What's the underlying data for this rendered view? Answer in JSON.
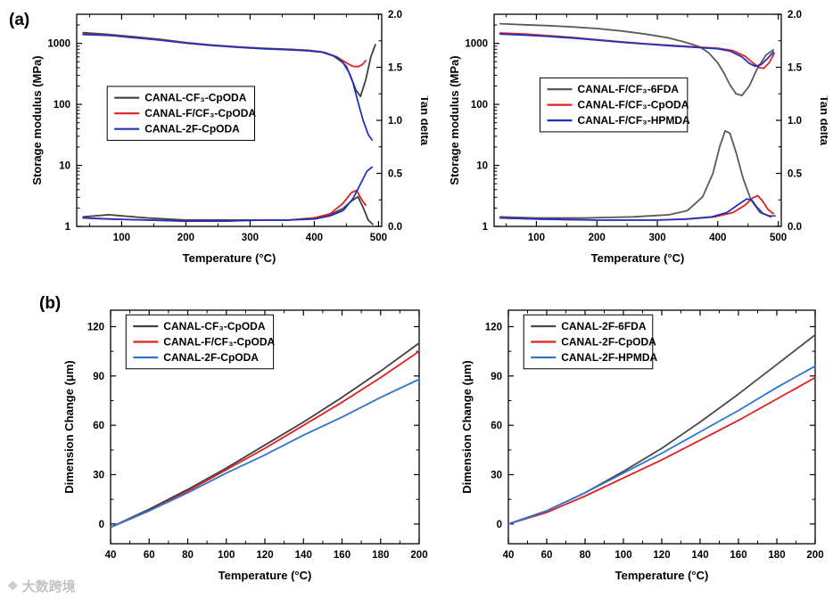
{
  "panel_labels": {
    "a": "(a)",
    "b": "(b)"
  },
  "watermark": {
    "icon": "❖",
    "text": "大数跨境"
  },
  "chart_data": [
    {
      "id": "dma-left",
      "type": "line",
      "xlabel": "Temperature (°C)",
      "ylabel_left": "Storage modulus (MPa)",
      "ylabel_right": "Tan delta",
      "xlim": [
        30,
        505
      ],
      "xticks": [
        100,
        200,
        300,
        400,
        500
      ],
      "xminor": 50,
      "yleft": {
        "scale": "log",
        "lim": [
          1,
          3000
        ],
        "ticks": [
          1,
          10,
          100,
          1000
        ],
        "dec": 0
      },
      "yright": {
        "scale": "linear",
        "lim": [
          0,
          2
        ],
        "ticks": [
          0,
          0.5,
          1,
          1.5,
          2
        ],
        "dec": 1,
        "minor": 0.25
      },
      "legend": {
        "x": 0.1,
        "y": 0.34
      },
      "margin_left": 56,
      "series": [
        {
          "name": "CANAL-CF₃-CpODA",
          "color": "#3f3f3f",
          "axis": "left",
          "in_legend": true,
          "x": [
            40,
            80,
            120,
            160,
            200,
            240,
            280,
            320,
            360,
            390,
            410,
            430,
            445,
            455,
            465,
            472,
            480,
            488,
            495
          ],
          "y": [
            1500,
            1400,
            1280,
            1160,
            1030,
            940,
            880,
            830,
            800,
            770,
            730,
            620,
            480,
            320,
            170,
            135,
            250,
            600,
            950
          ]
        },
        {
          "name": "CANAL-F/CF₃-CpODA",
          "color": "#e02020",
          "axis": "left",
          "in_legend": true,
          "x": [
            40,
            80,
            120,
            160,
            200,
            240,
            280,
            320,
            360,
            390,
            415,
            435,
            450,
            460,
            468,
            475,
            480
          ],
          "y": [
            1430,
            1370,
            1260,
            1140,
            1020,
            930,
            870,
            820,
            790,
            760,
            710,
            600,
            480,
            420,
            415,
            450,
            520
          ]
        },
        {
          "name": "CANAL-2F-CpODA",
          "color": "#2033bb",
          "axis": "left",
          "in_legend": true,
          "x": [
            40,
            80,
            120,
            160,
            200,
            240,
            280,
            320,
            360,
            390,
            415,
            435,
            450,
            460,
            468,
            476,
            484,
            490
          ],
          "y": [
            1400,
            1350,
            1240,
            1130,
            1010,
            925,
            865,
            815,
            785,
            755,
            715,
            600,
            420,
            230,
            110,
            55,
            32,
            26
          ]
        },
        {
          "name": "CANAL-CF₃-CpODA",
          "color": "#3f3f3f",
          "axis": "right",
          "in_legend": false,
          "x": [
            40,
            60,
            80,
            100,
            140,
            200,
            260,
            320,
            360,
            400,
            425,
            445,
            458,
            468,
            476,
            484,
            491
          ],
          "y": [
            0.09,
            0.1,
            0.11,
            0.1,
            0.08,
            0.06,
            0.06,
            0.06,
            0.06,
            0.08,
            0.11,
            0.17,
            0.24,
            0.28,
            0.18,
            0.06,
            0.02
          ]
        },
        {
          "name": "CANAL-F/CF₃-CpODA",
          "color": "#e02020",
          "axis": "right",
          "in_legend": false,
          "x": [
            40,
            80,
            140,
            200,
            260,
            320,
            360,
            400,
            425,
            445,
            458,
            466,
            473,
            480
          ],
          "y": [
            0.08,
            0.07,
            0.06,
            0.05,
            0.05,
            0.06,
            0.06,
            0.08,
            0.12,
            0.22,
            0.32,
            0.34,
            0.26,
            0.2
          ]
        },
        {
          "name": "CANAL-2F-CpODA",
          "color": "#2033bb",
          "axis": "right",
          "in_legend": false,
          "x": [
            40,
            80,
            140,
            200,
            260,
            320,
            360,
            400,
            425,
            445,
            460,
            472,
            482,
            490
          ],
          "y": [
            0.08,
            0.07,
            0.06,
            0.05,
            0.05,
            0.06,
            0.06,
            0.07,
            0.1,
            0.15,
            0.26,
            0.4,
            0.52,
            0.56
          ]
        }
      ]
    },
    {
      "id": "dma-right",
      "type": "line",
      "xlabel": "Temperature (°C)",
      "ylabel_left": "Storage modulus (MPa)",
      "ylabel_right": "Tan delta",
      "xlim": [
        30,
        505
      ],
      "xticks": [
        100,
        200,
        300,
        400,
        500
      ],
      "xminor": 50,
      "yleft": {
        "scale": "log",
        "lim": [
          1,
          3000
        ],
        "ticks": [
          1,
          10,
          100,
          1000
        ],
        "dec": 0
      },
      "yright": {
        "scale": "linear",
        "lim": [
          0,
          2
        ],
        "ticks": [
          0,
          0.5,
          1,
          1.5,
          2
        ],
        "dec": 1,
        "minor": 0.25
      },
      "legend": {
        "x": 0.16,
        "y": 0.3
      },
      "margin_left": 56,
      "series": [
        {
          "name": "CANAL-F/CF₃-6FDA",
          "color": "#5a5a5a",
          "axis": "left",
          "in_legend": true,
          "x": [
            40,
            80,
            120,
            160,
            200,
            240,
            280,
            320,
            350,
            370,
            385,
            400,
            410,
            420,
            430,
            440,
            452,
            465,
            480,
            492
          ],
          "y": [
            2100,
            2020,
            1950,
            1860,
            1750,
            1600,
            1420,
            1220,
            1020,
            880,
            700,
            480,
            330,
            210,
            150,
            140,
            200,
            380,
            650,
            780
          ]
        },
        {
          "name": "CANAL-F/CF₃-CpODA",
          "color": "#e02020",
          "axis": "left",
          "in_legend": true,
          "x": [
            40,
            80,
            120,
            160,
            200,
            240,
            280,
            320,
            360,
            400,
            425,
            445,
            458,
            468,
            476,
            485,
            493
          ],
          "y": [
            1480,
            1420,
            1340,
            1250,
            1150,
            1060,
            990,
            930,
            880,
            830,
            760,
            620,
            480,
            400,
            390,
            480,
            680
          ]
        },
        {
          "name": "CANAL-F/CF₃-HPMDA",
          "color": "#2033bb",
          "axis": "left",
          "in_legend": true,
          "x": [
            40,
            80,
            120,
            160,
            200,
            240,
            280,
            320,
            360,
            400,
            420,
            440,
            452,
            462,
            472,
            482,
            492
          ],
          "y": [
            1420,
            1370,
            1300,
            1220,
            1130,
            1045,
            975,
            915,
            865,
            815,
            750,
            600,
            470,
            420,
            450,
            560,
            720
          ]
        },
        {
          "name": "CANAL-F/CF₃-6FDA",
          "color": "#5a5a5a",
          "axis": "right",
          "in_legend": false,
          "x": [
            40,
            100,
            180,
            260,
            320,
            350,
            375,
            392,
            403,
            412,
            420,
            430,
            442,
            455,
            470,
            485,
            495
          ],
          "y": [
            0.09,
            0.08,
            0.08,
            0.09,
            0.11,
            0.15,
            0.28,
            0.5,
            0.75,
            0.9,
            0.88,
            0.7,
            0.45,
            0.25,
            0.13,
            0.1,
            0.1
          ]
        },
        {
          "name": "CANAL-F/CF₃-CpODA",
          "color": "#e02020",
          "axis": "right",
          "in_legend": false,
          "x": [
            40,
            100,
            200,
            300,
            350,
            395,
            425,
            445,
            458,
            466,
            474,
            483,
            492
          ],
          "y": [
            0.08,
            0.07,
            0.06,
            0.06,
            0.07,
            0.09,
            0.13,
            0.2,
            0.27,
            0.29,
            0.24,
            0.16,
            0.12
          ]
        },
        {
          "name": "CANAL-F/CF₃-HPMDA",
          "color": "#2033bb",
          "axis": "right",
          "in_legend": false,
          "x": [
            40,
            100,
            200,
            300,
            350,
            390,
            415,
            435,
            448,
            456,
            465,
            475,
            488
          ],
          "y": [
            0.08,
            0.07,
            0.06,
            0.06,
            0.07,
            0.09,
            0.13,
            0.21,
            0.26,
            0.25,
            0.18,
            0.12,
            0.09
          ]
        }
      ]
    },
    {
      "id": "tma-left",
      "type": "line",
      "xlabel": "Temperature (°C)",
      "ylabel_left": "Dimension Change (μm)",
      "xlim": [
        40,
        200
      ],
      "xticks": [
        40,
        60,
        80,
        100,
        120,
        140,
        160,
        180,
        200
      ],
      "xminor": 10,
      "yleft": {
        "scale": "linear",
        "lim": [
          -12,
          130
        ],
        "ticks": [
          0,
          30,
          60,
          90,
          120
        ],
        "dec": 0,
        "minor": 15
      },
      "legend": {
        "x": 0.05,
        "y": 0.02
      },
      "margin_left": 58,
      "series": [
        {
          "name": "CANAL-CF₃-CpODA",
          "color": "#3f3f3f",
          "axis": "left",
          "in_legend": true,
          "x": [
            40,
            60,
            80,
            100,
            120,
            140,
            160,
            180,
            200
          ],
          "y": [
            -2,
            9,
            21,
            34,
            48,
            62,
            77,
            93,
            110
          ]
        },
        {
          "name": "CANAL-F/CF₃-CpODA",
          "color": "#e02020",
          "axis": "left",
          "in_legend": true,
          "x": [
            40,
            60,
            80,
            100,
            120,
            140,
            160,
            180,
            200
          ],
          "y": [
            -2,
            8,
            20,
            33,
            46,
            60,
            74,
            89,
            105
          ]
        },
        {
          "name": "CANAL-2F-CpODA",
          "color": "#2e74d0",
          "axis": "left",
          "in_legend": true,
          "x": [
            40,
            60,
            80,
            100,
            120,
            140,
            160,
            180,
            200
          ],
          "y": [
            -2,
            8,
            19,
            31,
            42,
            54,
            65,
            77,
            88
          ]
        }
      ]
    },
    {
      "id": "tma-right",
      "type": "line",
      "xlabel": "Temperature (°C)",
      "ylabel_left": "Dimension Change (μm)",
      "xlim": [
        40,
        200
      ],
      "xticks": [
        40,
        60,
        80,
        100,
        120,
        140,
        160,
        180,
        200
      ],
      "xminor": 10,
      "yleft": {
        "scale": "linear",
        "lim": [
          -12,
          130
        ],
        "ticks": [
          0,
          30,
          60,
          90,
          120
        ],
        "dec": 0,
        "minor": 15
      },
      "legend": {
        "x": 0.05,
        "y": 0.02
      },
      "margin_left": 58,
      "series": [
        {
          "name": "CANAL-2F-6FDA",
          "color": "#4a4a4a",
          "axis": "left",
          "in_legend": true,
          "x": [
            40,
            60,
            80,
            100,
            120,
            140,
            160,
            180,
            200
          ],
          "y": [
            0,
            8,
            19,
            32,
            46,
            62,
            79,
            97,
            115
          ]
        },
        {
          "name": "CANAL-2F-CpODA",
          "color": "#e02020",
          "axis": "left",
          "in_legend": true,
          "x": [
            40,
            60,
            80,
            100,
            120,
            140,
            160,
            180,
            200
          ],
          "y": [
            0,
            7,
            17,
            28,
            39,
            51,
            63,
            76,
            89
          ]
        },
        {
          "name": "CANAL-2F-HPMDA",
          "color": "#2e74d0",
          "axis": "left",
          "in_legend": true,
          "x": [
            40,
            60,
            80,
            100,
            120,
            140,
            160,
            180,
            200
          ],
          "y": [
            0,
            8,
            19,
            31,
            43,
            56,
            69,
            83,
            96
          ]
        }
      ]
    }
  ]
}
